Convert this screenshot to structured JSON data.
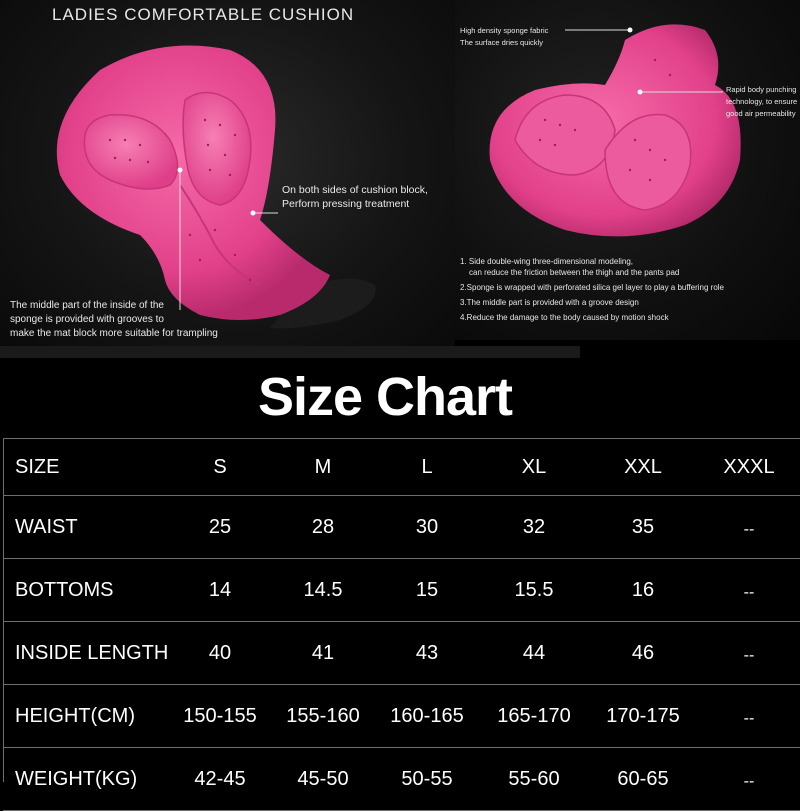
{
  "left_panel": {
    "heading": "LADIES COMFORTABLE CUSHION",
    "callout_sides": [
      "On both sides of cushion block,",
      "Perform pressing treatment"
    ],
    "callout_middle": [
      "The middle part of the inside of the",
      "sponge is provided with grooves to",
      "make the mat block more suitable for trampling"
    ]
  },
  "right_panel": {
    "callout_fabric": [
      "High density sponge fabric",
      "The surface dries quickly"
    ],
    "callout_punching": [
      "Rapid body punching",
      "technology, to ensure",
      "good air permeability"
    ],
    "features": [
      {
        "line1": "1. Side double-wing three-dimensional modeling,",
        "line2": "can reduce the friction between the thigh and the pants pad"
      },
      {
        "line1": "2.Sponge is wrapped with perforated silica gel layer to play a buffering role",
        "line2": ""
      },
      {
        "line1": "3.The middle part is provided with a groove design",
        "line2": ""
      },
      {
        "line1": "4.Reduce the damage to the body caused by motion shock",
        "line2": ""
      }
    ],
    "pad_color": "#e8408e"
  },
  "size_chart": {
    "title": "Size Chart",
    "header": [
      "SIZE",
      "S",
      "M",
      "L",
      "XL",
      "XXL",
      "XXXL"
    ],
    "rows": [
      [
        "WAIST",
        "25",
        "28",
        "30",
        "32",
        "35",
        "--"
      ],
      [
        "BOTTOMS",
        "14",
        "14.5",
        "15",
        "15.5",
        "16",
        "--"
      ],
      [
        "INSIDE LENGTH",
        "40",
        "41",
        "43",
        "44",
        "46",
        "--"
      ],
      [
        "HEIGHT(CM)",
        "150-155",
        "155-160",
        "160-165",
        "165-170",
        "170-175",
        "--"
      ],
      [
        "WEIGHT(KG)",
        "42-45",
        "45-50",
        "50-55",
        "55-60",
        "60-65",
        "--"
      ]
    ]
  }
}
